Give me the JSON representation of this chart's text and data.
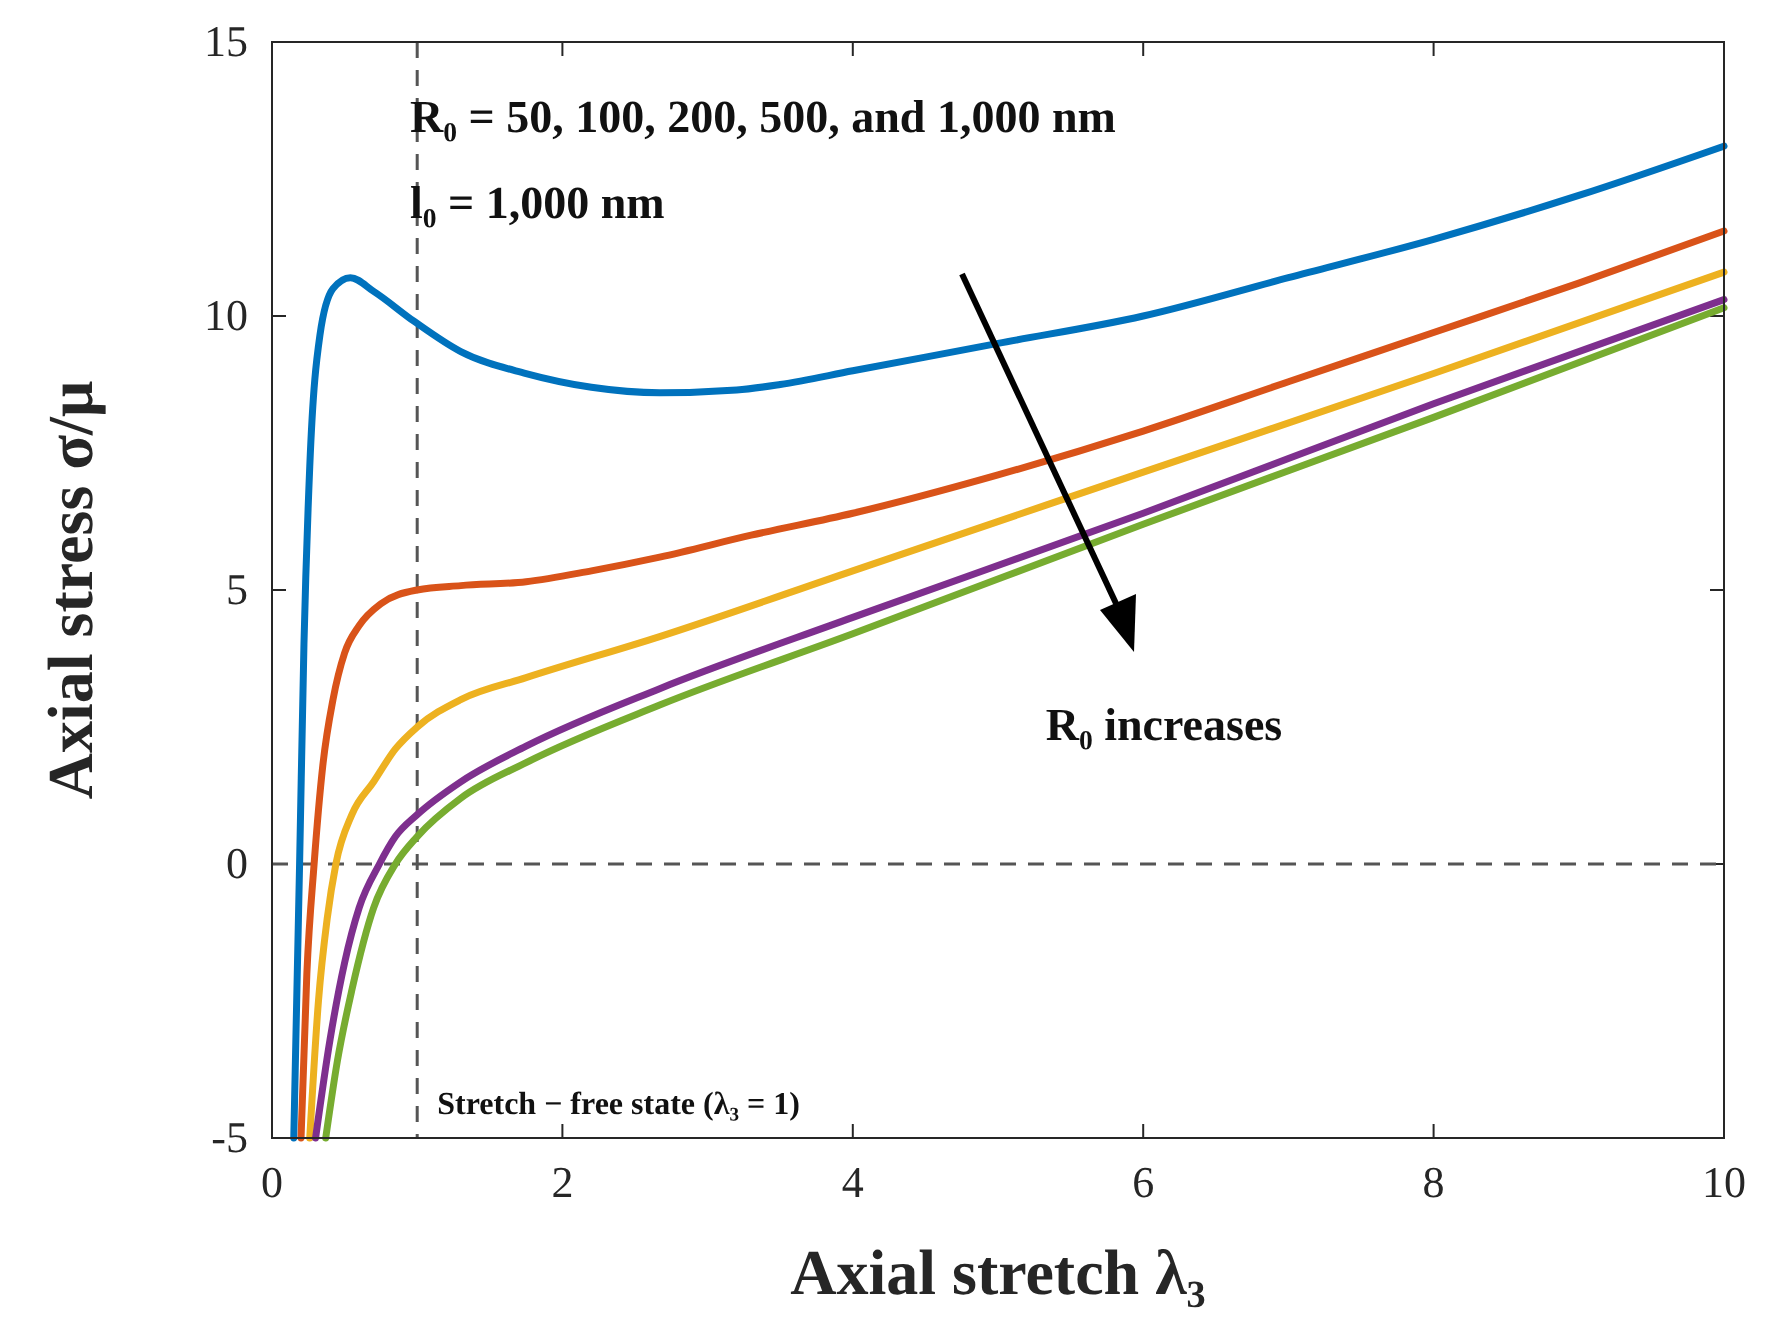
{
  "chart_data": {
    "type": "line",
    "xlabel": "Axial stretch λ₃",
    "ylabel": "Axial stress σ/μ",
    "xlim": [
      0,
      10
    ],
    "xticks": [
      0,
      2,
      4,
      6,
      8,
      10
    ],
    "ylim": [
      -5,
      15
    ],
    "yticks": [
      -5,
      0,
      5,
      10,
      15
    ],
    "grid": false,
    "marker": "none",
    "line_style": "solid",
    "series": [
      {
        "color": "#0072bd",
        "x": [
          0.15,
          0.19,
          0.22,
          0.26,
          0.33,
          0.42,
          0.54,
          0.7,
          0.98,
          1.3,
          1.75,
          2.2,
          2.67,
          3.2,
          3.5,
          4,
          5,
          6,
          7,
          8,
          9,
          10
        ],
        "values": [
          -5,
          0,
          4,
          7.25,
          9.65,
          10.5,
          10.7,
          10.45,
          9.9,
          9.35,
          8.95,
          8.7,
          8.6,
          8.65,
          8.75,
          9.0,
          9.5,
          10.0,
          10.7,
          11.4,
          12.2,
          13.1
        ]
      },
      {
        "color": "#d95319",
        "x": [
          0.2,
          0.24,
          0.29,
          0.35,
          0.42,
          0.5,
          0.6,
          0.75,
          1,
          1.3,
          1.75,
          2.2,
          2.67,
          3.3,
          4,
          5,
          6,
          7,
          8,
          9,
          10
        ],
        "values": [
          -5,
          -2,
          0,
          1.8,
          3.0,
          3.85,
          4.35,
          4.75,
          5.0,
          5.08,
          5.15,
          5.35,
          5.6,
          6.0,
          6.4,
          7.1,
          7.9,
          8.8,
          9.7,
          10.6,
          11.55
        ]
      },
      {
        "color": "#edb120",
        "x": [
          0.26,
          0.32,
          0.38,
          0.44,
          0.55,
          0.7,
          0.85,
          1,
          1.3,
          1.75,
          2.67,
          4,
          6,
          8,
          10
        ],
        "values": [
          -5,
          -2.5,
          -1,
          0,
          0.9,
          1.5,
          2.1,
          2.5,
          3.0,
          3.4,
          4.15,
          5.35,
          7.15,
          8.95,
          10.8
        ]
      },
      {
        "color": "#7e2f8e",
        "x": [
          0.3,
          0.4,
          0.5,
          0.6,
          0.74,
          0.85,
          1,
          1.3,
          1.75,
          2.67,
          4,
          6,
          8,
          10
        ],
        "values": [
          -5,
          -3.2,
          -1.8,
          -0.8,
          0,
          0.5,
          0.9,
          1.5,
          2.15,
          3.2,
          4.5,
          6.4,
          8.4,
          10.3
        ]
      },
      {
        "color": "#77ac30",
        "x": [
          0.37,
          0.45,
          0.55,
          0.7,
          0.85,
          1,
          1.3,
          1.75,
          2.67,
          4,
          6,
          8,
          10
        ],
        "values": [
          -5,
          -3.6,
          -2.3,
          -0.8,
          0,
          0.5,
          1.2,
          1.85,
          2.9,
          4.2,
          6.2,
          8.15,
          10.15
        ]
      }
    ],
    "ref_lines": [
      {
        "axis": "x",
        "value": 1,
        "label": "Stretch − free state (λ₃ = 1)",
        "color": "#555555",
        "line_style": "dashed"
      },
      {
        "axis": "y",
        "value": 0,
        "label": null,
        "color": "#555555",
        "line_style": "dashed"
      }
    ],
    "annotations": [
      "R₀ = 50, 100, 200, 500, and 1,000 nm",
      "l₀ = 1,000 nm",
      "R₀ increases"
    ]
  }
}
